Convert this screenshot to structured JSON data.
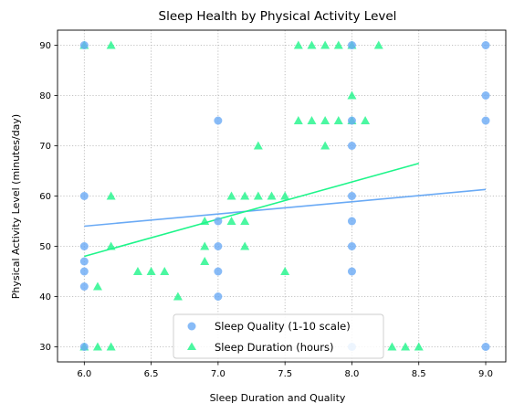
{
  "chart_data": {
    "type": "scatter",
    "title": "Sleep Health by Physical Activity Level",
    "xlabel": "Sleep Duration and Quality",
    "ylabel": "Physical Activity Level (minutes/day)",
    "xlim": [
      5.8,
      9.15
    ],
    "ylim": [
      27,
      93
    ],
    "xticks": [
      6.0,
      6.5,
      7.0,
      7.5,
      8.0,
      8.5,
      9.0
    ],
    "xtick_labels": [
      "6.0",
      "6.5",
      "7.0",
      "7.5",
      "8.0",
      "8.5",
      "9.0"
    ],
    "yticks": [
      30,
      40,
      50,
      60,
      70,
      80,
      90
    ],
    "ytick_labels": [
      "30",
      "40",
      "50",
      "60",
      "70",
      "80",
      "90"
    ],
    "grid": true,
    "legend_position": "lower-center",
    "series": [
      {
        "name": "Sleep Quality (1-10 scale)",
        "marker": "circle",
        "color": "#6aaaf5",
        "points": [
          [
            6,
            30
          ],
          [
            6,
            42
          ],
          [
            6,
            45
          ],
          [
            6,
            47
          ],
          [
            6,
            50
          ],
          [
            6,
            60
          ],
          [
            6,
            90
          ],
          [
            7,
            40
          ],
          [
            7,
            45
          ],
          [
            7,
            50
          ],
          [
            7,
            55
          ],
          [
            7,
            75
          ],
          [
            8,
            30
          ],
          [
            8,
            45
          ],
          [
            8,
            50
          ],
          [
            8,
            55
          ],
          [
            8,
            60
          ],
          [
            8,
            70
          ],
          [
            8,
            75
          ],
          [
            8,
            90
          ],
          [
            9,
            30
          ],
          [
            9,
            75
          ],
          [
            9,
            80
          ],
          [
            9,
            90
          ]
        ],
        "trend": {
          "x": [
            6.0,
            9.0
          ],
          "y": [
            54.0,
            61.3
          ]
        }
      },
      {
        "name": "Sleep Duration (hours)",
        "marker": "triangle",
        "color": "#1ef58a",
        "points": [
          [
            6.0,
            30
          ],
          [
            6.1,
            30
          ],
          [
            6.2,
            30
          ],
          [
            6.0,
            90
          ],
          [
            6.2,
            90
          ],
          [
            6.2,
            60
          ],
          [
            6.2,
            50
          ],
          [
            6.1,
            42
          ],
          [
            6.4,
            45
          ],
          [
            6.5,
            45
          ],
          [
            6.6,
            45
          ],
          [
            6.7,
            40
          ],
          [
            6.9,
            55
          ],
          [
            6.9,
            50
          ],
          [
            6.9,
            47
          ],
          [
            7.1,
            60
          ],
          [
            7.1,
            55
          ],
          [
            7.2,
            60
          ],
          [
            7.2,
            55
          ],
          [
            7.2,
            50
          ],
          [
            7.3,
            60
          ],
          [
            7.3,
            70
          ],
          [
            7.4,
            60
          ],
          [
            7.5,
            60
          ],
          [
            7.5,
            45
          ],
          [
            7.6,
            75
          ],
          [
            7.6,
            90
          ],
          [
            7.7,
            75
          ],
          [
            7.7,
            90
          ],
          [
            7.8,
            75
          ],
          [
            7.8,
            70
          ],
          [
            7.8,
            90
          ],
          [
            7.9,
            75
          ],
          [
            7.9,
            90
          ],
          [
            8.0,
            90
          ],
          [
            8.0,
            80
          ],
          [
            8.0,
            75
          ],
          [
            8.1,
            75
          ],
          [
            8.2,
            90
          ],
          [
            8.3,
            30
          ],
          [
            8.4,
            30
          ],
          [
            8.5,
            30
          ]
        ],
        "trend": {
          "x": [
            6.0,
            8.5
          ],
          "y": [
            48.0,
            66.5
          ]
        }
      }
    ]
  }
}
